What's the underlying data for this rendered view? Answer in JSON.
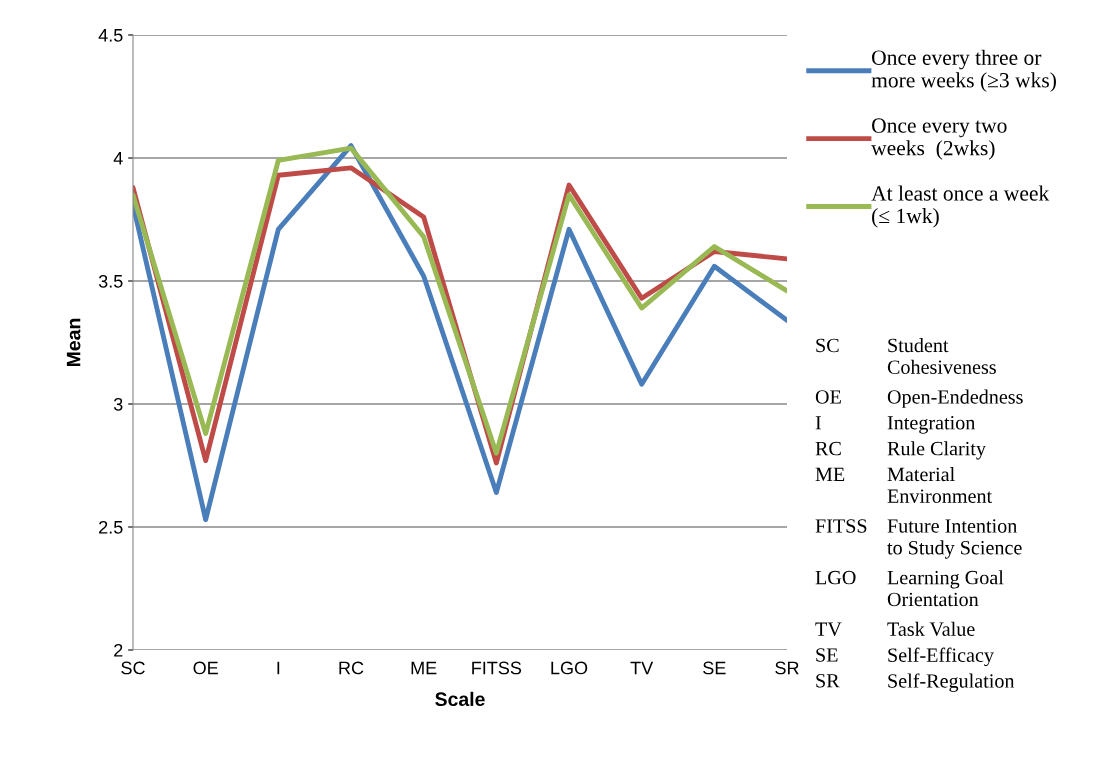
{
  "chart_data": {
    "type": "line",
    "xlabel": "Scale",
    "ylabel": "Mean",
    "categories": [
      "SC",
      "OE",
      "I",
      "RC",
      "ME",
      "FITSS",
      "LGO",
      "TV",
      "SE",
      "SR"
    ],
    "series": [
      {
        "name": "Once every three or\nmore weeks (≥3 wks)",
        "color": "#4a7ebb",
        "values": [
          3.81,
          2.53,
          3.71,
          4.05,
          3.52,
          2.64,
          3.71,
          3.08,
          3.56,
          3.34
        ]
      },
      {
        "name": "Once every two\nweeks  (2wks)",
        "color": "#be4b48",
        "values": [
          3.88,
          2.77,
          3.93,
          3.96,
          3.76,
          2.76,
          3.89,
          3.43,
          3.62,
          3.59
        ]
      },
      {
        "name": "At least once a week\n(≤ 1wk)",
        "color": "#98b954",
        "values": [
          3.85,
          2.88,
          3.99,
          4.04,
          3.68,
          2.8,
          3.85,
          3.39,
          3.64,
          3.46
        ]
      }
    ],
    "ylim": [
      2,
      4.5
    ],
    "yticks": [
      2,
      2.5,
      3,
      3.5,
      4,
      4.5
    ],
    "grid": "y",
    "legend": "right",
    "marker": "none",
    "line_style": "solid",
    "annotations": [
      "SC Student\nCohesiveness",
      "OE Open-Endedness",
      "I Integration",
      "RC Rule Clarity",
      "ME Material\nEnvironment",
      "FITSS Future Intention\nto Study Science",
      "LGO Learning Goal\nOrientation",
      "TV Task Value",
      "SE Self-Efficacy",
      "SR Self-Regulation"
    ]
  }
}
